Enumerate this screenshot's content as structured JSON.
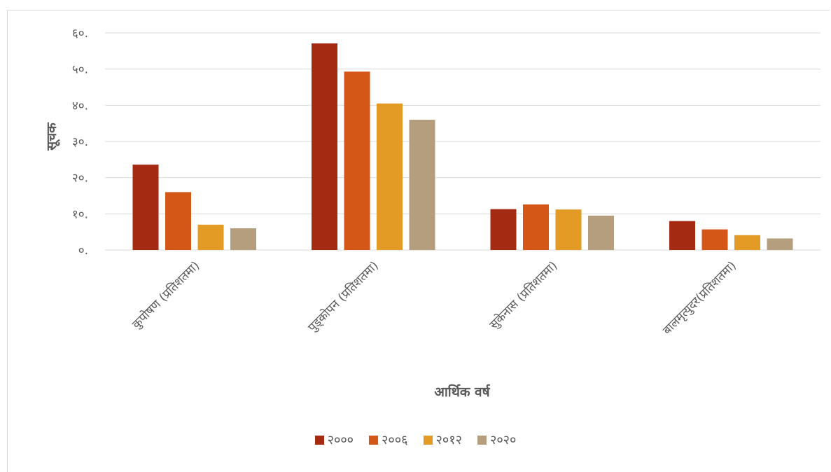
{
  "chart_data": {
    "type": "bar",
    "title": "",
    "xlabel": "आर्थिक वर्ष",
    "ylabel": "सूचक",
    "categories": [
      "कुपोषण (प्रतिशतमा)",
      "पुड्कोपन (प्रतिशतमा)",
      "सुकेनास (प्रतिशतमा)",
      "बालमृत्युदर(प्रतिशतमा)"
    ],
    "series": [
      {
        "name": "२०००",
        "color": "#A52A12",
        "values": [
          23.6,
          57.1,
          11.3,
          8.0
        ]
      },
      {
        "name": "२००६",
        "color": "#D55718",
        "values": [
          16.0,
          49.3,
          12.6,
          5.7
        ]
      },
      {
        "name": "२०१२",
        "color": "#E39B26",
        "values": [
          7.0,
          40.5,
          11.2,
          4.1
        ]
      },
      {
        "name": "२०२०",
        "color": "#B59E7E",
        "values": [
          6.0,
          36.0,
          9.5,
          3.2
        ]
      }
    ],
    "ylim": [
      0,
      60
    ],
    "yticks": [
      0,
      10,
      20,
      30,
      40,
      50,
      60
    ],
    "ytick_labels": [
      "०.",
      "१०.",
      "२०.",
      "३०.",
      "४०.",
      "५०.",
      "६०."
    ],
    "grid": true,
    "legend_position": "bottom"
  }
}
